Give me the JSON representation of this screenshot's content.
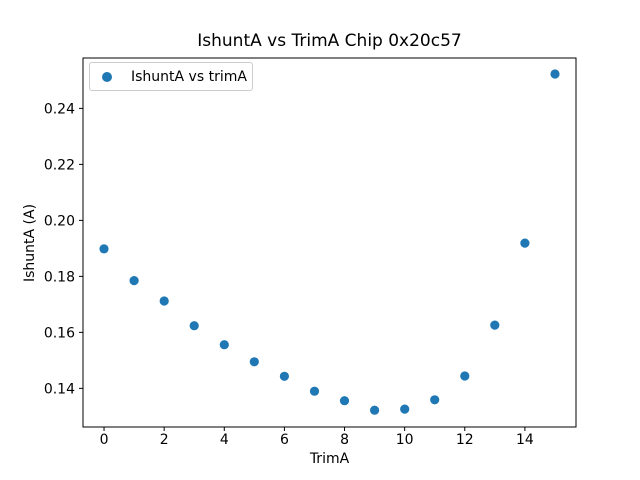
{
  "figure": {
    "background": "#ffffff",
    "accent_color": "#1f77b4"
  },
  "chart_data": {
    "type": "scatter",
    "title": "IshuntA vs TrimA Chip 0x20c57",
    "xlabel": "TrimA",
    "ylabel": "IshuntA (A)",
    "xlim": [
      -0.7,
      15.7
    ],
    "ylim": [
      0.1262,
      0.258
    ],
    "grid": false,
    "legend_position": "upper left",
    "xticks": {
      "values": [
        0,
        2,
        4,
        6,
        8,
        10,
        12,
        14
      ],
      "labels": [
        "0",
        "2",
        "4",
        "6",
        "8",
        "10",
        "12",
        "14"
      ]
    },
    "yticks": {
      "values": [
        0.14,
        0.16,
        0.18,
        0.2,
        0.22,
        0.24
      ],
      "labels": [
        "0.14",
        "0.16",
        "0.18",
        "0.20",
        "0.22",
        "0.24"
      ]
    },
    "series": [
      {
        "name": "IshuntA vs trimA",
        "color": "#1f77b4",
        "marker": "circle",
        "x": [
          0,
          1,
          2,
          3,
          4,
          5,
          6,
          7,
          8,
          9,
          10,
          11,
          12,
          13,
          14,
          15
        ],
        "y": [
          0.1898,
          0.1785,
          0.1712,
          0.1624,
          0.1556,
          0.1495,
          0.1443,
          0.139,
          0.1356,
          0.1322,
          0.1326,
          0.1359,
          0.1444,
          0.1626,
          0.1919,
          0.2523
        ]
      }
    ]
  }
}
